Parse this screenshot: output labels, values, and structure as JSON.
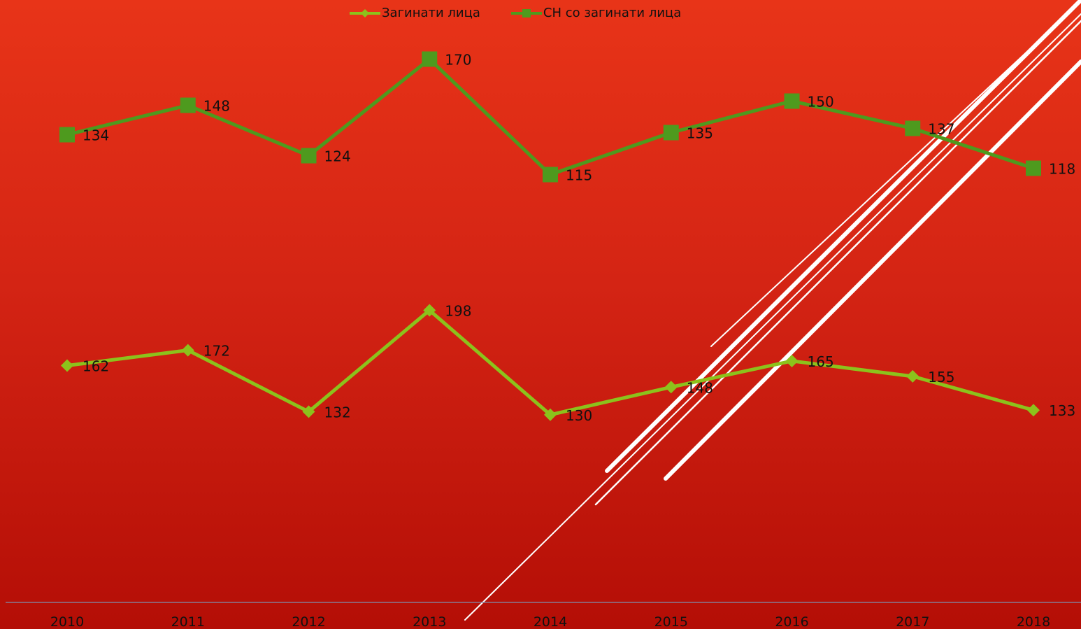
{
  "chart_data": {
    "type": "line",
    "categories": [
      "2010",
      "2011",
      "2012",
      "2013",
      "2014",
      "2015",
      "2016",
      "2017",
      "2018"
    ],
    "series": [
      {
        "name": "Загинати лица",
        "values": [
          162,
          172,
          132,
          198,
          130,
          148,
          165,
          155,
          133
        ],
        "color": "#8cc21c",
        "marker": "diamond"
      },
      {
        "name": "СН со загинати лица",
        "values": [
          134,
          148,
          124,
          170,
          115,
          135,
          150,
          137,
          118
        ],
        "color": "#4e9a1e",
        "marker": "square"
      }
    ],
    "legend": "top-center",
    "grid": false
  },
  "colors": {
    "axis": "#7d8fb0",
    "label": "#111111",
    "deco": "#ffffff"
  }
}
